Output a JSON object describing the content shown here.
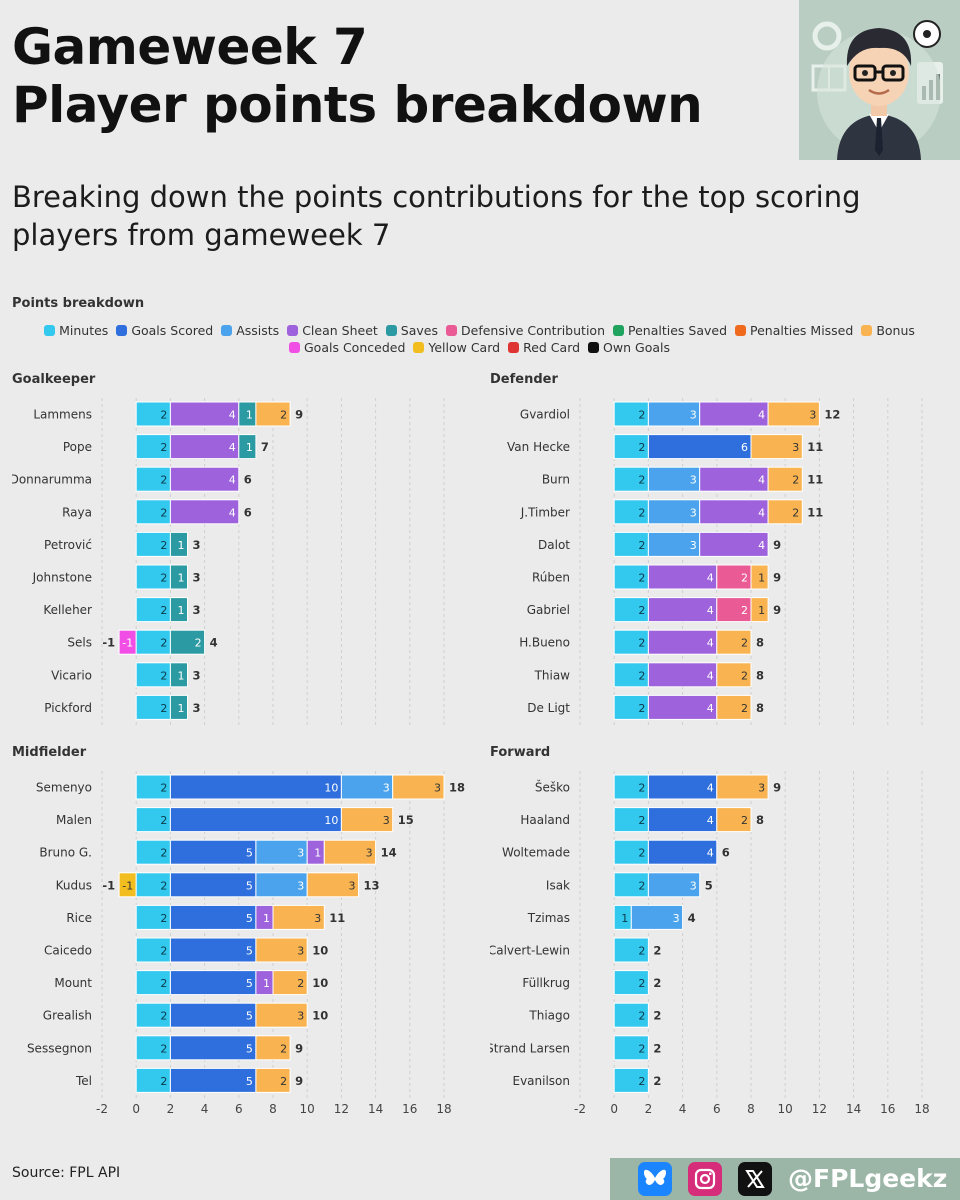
{
  "header": {
    "title_line1": "Gameweek 7",
    "title_line2": "Player points breakdown",
    "subtitle": "Breaking down the points contributions for the top scoring players from gameweek 7"
  },
  "footer": {
    "source": "Source: FPL API",
    "handle": "@FPLgeekz",
    "icons": [
      "bluesky-icon",
      "instagram-icon",
      "x-icon"
    ]
  },
  "avatar": {
    "icon": "cartoon-analyst-avatar"
  },
  "chart_data": {
    "type": "bar",
    "orientation": "horizontal-stacked",
    "legend_title": "Points breakdown",
    "categories": [
      {
        "name": "Minutes",
        "color": "#33c8ee",
        "text": "#0a3a4a"
      },
      {
        "name": "Goals Scored",
        "color": "#2f6fdd",
        "text": "#ffffff"
      },
      {
        "name": "Assists",
        "color": "#4aa3ec",
        "text": "#ffffff"
      },
      {
        "name": "Clean Sheet",
        "color": "#9d62dc",
        "text": "#ffffff"
      },
      {
        "name": "Saves",
        "color": "#2b9aa2",
        "text": "#ffffff"
      },
      {
        "name": "Defensive Contribution",
        "color": "#ea5a94",
        "text": "#ffffff"
      },
      {
        "name": "Penalties Saved",
        "color": "#1fa35e",
        "text": "#ffffff"
      },
      {
        "name": "Penalties Missed",
        "color": "#f06a1e",
        "text": "#ffffff"
      },
      {
        "name": "Bonus",
        "color": "#f9b451",
        "text": "#333333"
      },
      {
        "name": "Goals Conceded",
        "color": "#f04ee4",
        "text": "#ffffff"
      },
      {
        "name": "Yellow Card",
        "color": "#f1bd1f",
        "text": "#333333"
      },
      {
        "name": "Red Card",
        "color": "#de3434",
        "text": "#ffffff"
      },
      {
        "name": "Own Goals",
        "color": "#111111",
        "text": "#ffffff"
      }
    ],
    "xlim": [
      -2,
      18
    ],
    "xticks": [
      -2,
      0,
      2,
      4,
      6,
      8,
      10,
      12,
      14,
      16,
      18
    ],
    "panels": [
      {
        "title": "Goalkeeper",
        "players": [
          {
            "name": "Lammens",
            "total": "9",
            "neg": "",
            "parts": [
              {
                "cat": "Minutes",
                "value": 2
              },
              {
                "cat": "Clean Sheet",
                "value": 4
              },
              {
                "cat": "Saves",
                "value": 1
              },
              {
                "cat": "Bonus",
                "value": 2
              }
            ]
          },
          {
            "name": "Pope",
            "total": "7",
            "neg": "",
            "parts": [
              {
                "cat": "Minutes",
                "value": 2
              },
              {
                "cat": "Clean Sheet",
                "value": 4
              },
              {
                "cat": "Saves",
                "value": 1
              }
            ]
          },
          {
            "name": "Donnarumma",
            "total": "6",
            "neg": "",
            "parts": [
              {
                "cat": "Minutes",
                "value": 2
              },
              {
                "cat": "Clean Sheet",
                "value": 4
              }
            ]
          },
          {
            "name": "Raya",
            "total": "6",
            "neg": "",
            "parts": [
              {
                "cat": "Minutes",
                "value": 2
              },
              {
                "cat": "Clean Sheet",
                "value": 4
              }
            ]
          },
          {
            "name": "Petrović",
            "total": "3",
            "neg": "",
            "parts": [
              {
                "cat": "Minutes",
                "value": 2
              },
              {
                "cat": "Saves",
                "value": 1
              }
            ]
          },
          {
            "name": "Johnstone",
            "total": "3",
            "neg": "",
            "parts": [
              {
                "cat": "Minutes",
                "value": 2
              },
              {
                "cat": "Saves",
                "value": 1
              }
            ]
          },
          {
            "name": "Kelleher",
            "total": "3",
            "neg": "",
            "parts": [
              {
                "cat": "Minutes",
                "value": 2
              },
              {
                "cat": "Saves",
                "value": 1
              }
            ]
          },
          {
            "name": "Sels",
            "total": "4",
            "neg": "-1",
            "parts": [
              {
                "cat": "Goals Conceded",
                "value": -1
              },
              {
                "cat": "Minutes",
                "value": 2
              },
              {
                "cat": "Saves",
                "value": 2
              }
            ]
          },
          {
            "name": "Vicario",
            "total": "3",
            "neg": "",
            "parts": [
              {
                "cat": "Minutes",
                "value": 2
              },
              {
                "cat": "Saves",
                "value": 1
              }
            ]
          },
          {
            "name": "Pickford",
            "total": "3",
            "neg": "",
            "parts": [
              {
                "cat": "Minutes",
                "value": 2
              },
              {
                "cat": "Saves",
                "value": 1
              }
            ]
          }
        ]
      },
      {
        "title": "Defender",
        "players": [
          {
            "name": "Gvardiol",
            "total": "12",
            "neg": "",
            "parts": [
              {
                "cat": "Minutes",
                "value": 2
              },
              {
                "cat": "Assists",
                "value": 3
              },
              {
                "cat": "Clean Sheet",
                "value": 4
              },
              {
                "cat": "Bonus",
                "value": 3
              }
            ]
          },
          {
            "name": "Van Hecke",
            "total": "11",
            "neg": "",
            "parts": [
              {
                "cat": "Minutes",
                "value": 2
              },
              {
                "cat": "Goals Scored",
                "value": 6
              },
              {
                "cat": "Bonus",
                "value": 3
              }
            ]
          },
          {
            "name": "Burn",
            "total": "11",
            "neg": "",
            "parts": [
              {
                "cat": "Minutes",
                "value": 2
              },
              {
                "cat": "Assists",
                "value": 3
              },
              {
                "cat": "Clean Sheet",
                "value": 4
              },
              {
                "cat": "Bonus",
                "value": 2
              }
            ]
          },
          {
            "name": "J.Timber",
            "total": "11",
            "neg": "",
            "parts": [
              {
                "cat": "Minutes",
                "value": 2
              },
              {
                "cat": "Assists",
                "value": 3
              },
              {
                "cat": "Clean Sheet",
                "value": 4
              },
              {
                "cat": "Bonus",
                "value": 2
              }
            ]
          },
          {
            "name": "Dalot",
            "total": "9",
            "neg": "",
            "parts": [
              {
                "cat": "Minutes",
                "value": 2
              },
              {
                "cat": "Assists",
                "value": 3
              },
              {
                "cat": "Clean Sheet",
                "value": 4
              }
            ]
          },
          {
            "name": "Rúben",
            "total": "9",
            "neg": "",
            "parts": [
              {
                "cat": "Minutes",
                "value": 2
              },
              {
                "cat": "Clean Sheet",
                "value": 4
              },
              {
                "cat": "Defensive Contribution",
                "value": 2
              },
              {
                "cat": "Bonus",
                "value": 1
              }
            ]
          },
          {
            "name": "Gabriel",
            "total": "9",
            "neg": "",
            "parts": [
              {
                "cat": "Minutes",
                "value": 2
              },
              {
                "cat": "Clean Sheet",
                "value": 4
              },
              {
                "cat": "Defensive Contribution",
                "value": 2
              },
              {
                "cat": "Bonus",
                "value": 1
              }
            ]
          },
          {
            "name": "H.Bueno",
            "total": "8",
            "neg": "",
            "parts": [
              {
                "cat": "Minutes",
                "value": 2
              },
              {
                "cat": "Clean Sheet",
                "value": 4
              },
              {
                "cat": "Bonus",
                "value": 2
              }
            ]
          },
          {
            "name": "Thiaw",
            "total": "8",
            "neg": "",
            "parts": [
              {
                "cat": "Minutes",
                "value": 2
              },
              {
                "cat": "Clean Sheet",
                "value": 4
              },
              {
                "cat": "Bonus",
                "value": 2
              }
            ]
          },
          {
            "name": "De Ligt",
            "total": "8",
            "neg": "",
            "parts": [
              {
                "cat": "Minutes",
                "value": 2
              },
              {
                "cat": "Clean Sheet",
                "value": 4
              },
              {
                "cat": "Bonus",
                "value": 2
              }
            ]
          }
        ]
      },
      {
        "title": "Midfielder",
        "players": [
          {
            "name": "Semenyo",
            "total": "18",
            "neg": "",
            "parts": [
              {
                "cat": "Minutes",
                "value": 2
              },
              {
                "cat": "Goals Scored",
                "value": 10
              },
              {
                "cat": "Assists",
                "value": 3
              },
              {
                "cat": "Bonus",
                "value": 3
              }
            ]
          },
          {
            "name": "Malen",
            "total": "15",
            "neg": "",
            "parts": [
              {
                "cat": "Minutes",
                "value": 2
              },
              {
                "cat": "Goals Scored",
                "value": 10
              },
              {
                "cat": "Bonus",
                "value": 3
              }
            ]
          },
          {
            "name": "Bruno G.",
            "total": "14",
            "neg": "",
            "parts": [
              {
                "cat": "Minutes",
                "value": 2
              },
              {
                "cat": "Goals Scored",
                "value": 5
              },
              {
                "cat": "Assists",
                "value": 3
              },
              {
                "cat": "Clean Sheet",
                "value": 1
              },
              {
                "cat": "Bonus",
                "value": 3
              }
            ]
          },
          {
            "name": "Kudus",
            "total": "13",
            "neg": "-1",
            "parts": [
              {
                "cat": "Yellow Card",
                "value": -1
              },
              {
                "cat": "Minutes",
                "value": 2
              },
              {
                "cat": "Goals Scored",
                "value": 5
              },
              {
                "cat": "Assists",
                "value": 3
              },
              {
                "cat": "Bonus",
                "value": 3
              }
            ]
          },
          {
            "name": "Rice",
            "total": "11",
            "neg": "",
            "parts": [
              {
                "cat": "Minutes",
                "value": 2
              },
              {
                "cat": "Goals Scored",
                "value": 5
              },
              {
                "cat": "Clean Sheet",
                "value": 1
              },
              {
                "cat": "Bonus",
                "value": 3
              }
            ]
          },
          {
            "name": "Caicedo",
            "total": "10",
            "neg": "",
            "parts": [
              {
                "cat": "Minutes",
                "value": 2
              },
              {
                "cat": "Goals Scored",
                "value": 5
              },
              {
                "cat": "Bonus",
                "value": 3
              }
            ]
          },
          {
            "name": "Mount",
            "total": "10",
            "neg": "",
            "parts": [
              {
                "cat": "Minutes",
                "value": 2
              },
              {
                "cat": "Goals Scored",
                "value": 5
              },
              {
                "cat": "Clean Sheet",
                "value": 1
              },
              {
                "cat": "Bonus",
                "value": 2
              }
            ]
          },
          {
            "name": "Grealish",
            "total": "10",
            "neg": "",
            "parts": [
              {
                "cat": "Minutes",
                "value": 2
              },
              {
                "cat": "Goals Scored",
                "value": 5
              },
              {
                "cat": "Bonus",
                "value": 3
              }
            ]
          },
          {
            "name": "Sessegnon",
            "total": "9",
            "neg": "",
            "parts": [
              {
                "cat": "Minutes",
                "value": 2
              },
              {
                "cat": "Goals Scored",
                "value": 5
              },
              {
                "cat": "Bonus",
                "value": 2
              }
            ]
          },
          {
            "name": "Tel",
            "total": "9",
            "neg": "",
            "parts": [
              {
                "cat": "Minutes",
                "value": 2
              },
              {
                "cat": "Goals Scored",
                "value": 5
              },
              {
                "cat": "Bonus",
                "value": 2
              }
            ]
          }
        ]
      },
      {
        "title": "Forward",
        "players": [
          {
            "name": "Šeško",
            "total": "9",
            "neg": "",
            "parts": [
              {
                "cat": "Minutes",
                "value": 2
              },
              {
                "cat": "Goals Scored",
                "value": 4
              },
              {
                "cat": "Bonus",
                "value": 3
              }
            ]
          },
          {
            "name": "Haaland",
            "total": "8",
            "neg": "",
            "parts": [
              {
                "cat": "Minutes",
                "value": 2
              },
              {
                "cat": "Goals Scored",
                "value": 4
              },
              {
                "cat": "Bonus",
                "value": 2
              }
            ]
          },
          {
            "name": "Woltemade",
            "total": "6",
            "neg": "",
            "parts": [
              {
                "cat": "Minutes",
                "value": 2
              },
              {
                "cat": "Goals Scored",
                "value": 4
              }
            ]
          },
          {
            "name": "Isak",
            "total": "5",
            "neg": "",
            "parts": [
              {
                "cat": "Minutes",
                "value": 2
              },
              {
                "cat": "Assists",
                "value": 3
              }
            ]
          },
          {
            "name": "Tzimas",
            "total": "4",
            "neg": "",
            "parts": [
              {
                "cat": "Minutes",
                "value": 1
              },
              {
                "cat": "Assists",
                "value": 3
              }
            ]
          },
          {
            "name": "Calvert-Lewin",
            "total": "2",
            "neg": "",
            "parts": [
              {
                "cat": "Minutes",
                "value": 2
              }
            ]
          },
          {
            "name": "Füllkrug",
            "total": "2",
            "neg": "",
            "parts": [
              {
                "cat": "Minutes",
                "value": 2
              }
            ]
          },
          {
            "name": "Thiago",
            "total": "2",
            "neg": "",
            "parts": [
              {
                "cat": "Minutes",
                "value": 2
              }
            ]
          },
          {
            "name": "Strand Larsen",
            "total": "2",
            "neg": "",
            "parts": [
              {
                "cat": "Minutes",
                "value": 2
              }
            ]
          },
          {
            "name": "Evanilson",
            "total": "2",
            "neg": "",
            "parts": [
              {
                "cat": "Minutes",
                "value": 2
              }
            ]
          }
        ]
      }
    ]
  }
}
